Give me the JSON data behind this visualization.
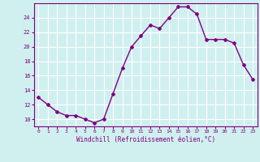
{
  "x": [
    0,
    1,
    2,
    3,
    4,
    5,
    6,
    7,
    8,
    9,
    10,
    11,
    12,
    13,
    14,
    15,
    16,
    17,
    18,
    19,
    20,
    21,
    22,
    23
  ],
  "y": [
    13,
    12,
    11,
    10.5,
    10.5,
    10,
    9.5,
    10,
    13.5,
    17,
    20,
    21.5,
    23,
    22.5,
    24,
    25.5,
    25.5,
    24.5,
    21,
    21,
    21,
    20.5,
    17.5,
    15.5
  ],
  "line_color": "#800080",
  "marker": "D",
  "marker_size": 2,
  "bg_color": "#d0f0f0",
  "grid_color": "#b0dede",
  "xlabel": "Windchill (Refroidissement éolien,°C)",
  "xlabel_color": "#800080",
  "tick_color": "#800080",
  "axis_color": "#800080",
  "ylim": [
    9,
    26
  ],
  "xlim": [
    -0.5,
    23.5
  ],
  "yticks": [
    10,
    12,
    14,
    16,
    18,
    20,
    22,
    24
  ],
  "xticks": [
    0,
    1,
    2,
    3,
    4,
    5,
    6,
    7,
    8,
    9,
    10,
    11,
    12,
    13,
    14,
    15,
    16,
    17,
    18,
    19,
    20,
    21,
    22,
    23
  ],
  "xtick_labels": [
    "0",
    "1",
    "2",
    "3",
    "4",
    "5",
    "6",
    "7",
    "8",
    "9",
    "10",
    "11",
    "12",
    "13",
    "14",
    "15",
    "16",
    "17",
    "18",
    "19",
    "20",
    "21",
    "22",
    "23"
  ],
  "ytick_labels": [
    "10",
    "12",
    "14",
    "16",
    "18",
    "20",
    "22",
    "24"
  ],
  "line_width": 1.0
}
